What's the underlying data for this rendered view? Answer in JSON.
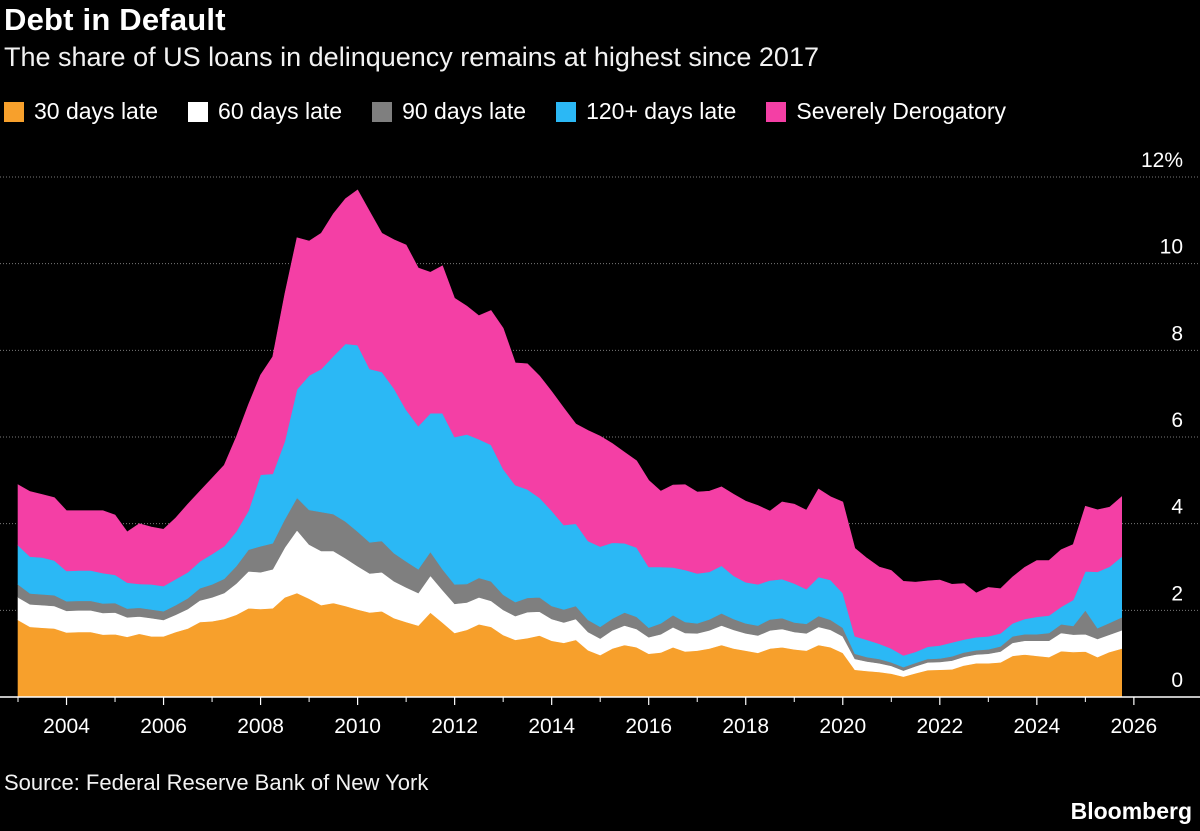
{
  "header": {
    "title": "Debt in Default",
    "subtitle": "The share of US loans in delinquency remains at highest since 2017"
  },
  "footer": {
    "source": "Source: Federal Reserve Bank of New York",
    "brand": "Bloomberg"
  },
  "chart_data": {
    "type": "area",
    "stacked": true,
    "title": "Debt in Default",
    "subtitle": "The share of US loans in delinquency remains at highest since 2017",
    "xlabel": "",
    "ylabel": "",
    "xlim": [
      2003.0,
      2026.25
    ],
    "ylim": [
      0,
      12
    ],
    "y_unit": "%",
    "yticks": [
      {
        "value": 0,
        "label": "0"
      },
      {
        "value": 2,
        "label": "2"
      },
      {
        "value": 4,
        "label": "4"
      },
      {
        "value": 6,
        "label": "6"
      },
      {
        "value": 8,
        "label": "8"
      },
      {
        "value": 10,
        "label": "10"
      },
      {
        "value": 12,
        "label": "12%"
      }
    ],
    "xticks": [
      {
        "value": 2004,
        "label": "2004"
      },
      {
        "value": 2006,
        "label": "2006"
      },
      {
        "value": 2008,
        "label": "2008"
      },
      {
        "value": 2010,
        "label": "2010"
      },
      {
        "value": 2012,
        "label": "2012"
      },
      {
        "value": 2014,
        "label": "2014"
      },
      {
        "value": 2016,
        "label": "2016"
      },
      {
        "value": 2018,
        "label": "2018"
      },
      {
        "value": 2020,
        "label": "2020"
      },
      {
        "value": 2022,
        "label": "2022"
      },
      {
        "value": 2024,
        "label": "2024"
      },
      {
        "value": 2026,
        "label": "2026"
      }
    ],
    "grid": "horizontal",
    "legend_position": "top",
    "x": [
      2003.0,
      2003.25,
      2003.5,
      2003.75,
      2004.0,
      2004.25,
      2004.5,
      2004.75,
      2005.0,
      2005.25,
      2005.5,
      2005.75,
      2006.0,
      2006.25,
      2006.5,
      2006.75,
      2007.0,
      2007.25,
      2007.5,
      2007.75,
      2008.0,
      2008.25,
      2008.5,
      2008.75,
      2009.0,
      2009.25,
      2009.5,
      2009.75,
      2010.0,
      2010.25,
      2010.5,
      2010.75,
      2011.0,
      2011.25,
      2011.5,
      2011.75,
      2012.0,
      2012.25,
      2012.5,
      2012.75,
      2013.0,
      2013.25,
      2013.5,
      2013.75,
      2014.0,
      2014.25,
      2014.5,
      2014.75,
      2015.0,
      2015.25,
      2015.5,
      2015.75,
      2016.0,
      2016.25,
      2016.5,
      2016.75,
      2017.0,
      2017.25,
      2017.5,
      2017.75,
      2018.0,
      2018.25,
      2018.5,
      2018.75,
      2019.0,
      2019.25,
      2019.5,
      2019.75,
      2020.0,
      2020.25,
      2020.5,
      2020.75,
      2021.0,
      2021.25,
      2021.5,
      2021.75,
      2022.0,
      2022.25,
      2022.5,
      2022.75,
      2023.0,
      2023.25,
      2023.5,
      2023.75,
      2024.0,
      2024.25,
      2024.5,
      2024.75,
      2025.0,
      2025.25,
      2025.5,
      2025.75
    ],
    "series": [
      {
        "name": "30 days late",
        "color": "#f7a02c",
        "values": [
          1.78,
          1.62,
          1.6,
          1.58,
          1.49,
          1.5,
          1.5,
          1.44,
          1.45,
          1.39,
          1.46,
          1.4,
          1.4,
          1.5,
          1.58,
          1.73,
          1.75,
          1.8,
          1.9,
          2.05,
          2.03,
          2.05,
          2.3,
          2.4,
          2.27,
          2.12,
          2.17,
          2.1,
          2.02,
          1.95,
          1.98,
          1.82,
          1.73,
          1.65,
          1.95,
          1.72,
          1.48,
          1.55,
          1.68,
          1.62,
          1.43,
          1.32,
          1.36,
          1.42,
          1.3,
          1.25,
          1.32,
          1.08,
          0.97,
          1.12,
          1.2,
          1.15,
          1.0,
          1.03,
          1.15,
          1.05,
          1.07,
          1.12,
          1.2,
          1.12,
          1.07,
          1.02,
          1.12,
          1.15,
          1.1,
          1.07,
          1.2,
          1.15,
          1.02,
          0.63,
          0.6,
          0.58,
          0.54,
          0.47,
          0.55,
          0.62,
          0.63,
          0.64,
          0.73,
          0.78,
          0.78,
          0.8,
          0.95,
          0.98,
          0.95,
          0.92,
          1.06,
          1.04,
          1.05,
          0.92,
          1.04,
          1.12
        ]
      },
      {
        "name": "60 days late",
        "color": "#ffffff",
        "values": [
          0.52,
          0.52,
          0.52,
          0.52,
          0.5,
          0.5,
          0.5,
          0.5,
          0.5,
          0.45,
          0.4,
          0.42,
          0.38,
          0.4,
          0.45,
          0.5,
          0.55,
          0.6,
          0.72,
          0.85,
          0.85,
          0.9,
          1.15,
          1.45,
          1.25,
          1.25,
          1.2,
          1.1,
          1.0,
          0.9,
          0.9,
          0.85,
          0.8,
          0.75,
          0.85,
          0.75,
          0.67,
          0.63,
          0.62,
          0.6,
          0.58,
          0.55,
          0.6,
          0.55,
          0.5,
          0.47,
          0.48,
          0.42,
          0.38,
          0.42,
          0.45,
          0.42,
          0.38,
          0.42,
          0.46,
          0.43,
          0.4,
          0.42,
          0.45,
          0.43,
          0.4,
          0.4,
          0.42,
          0.42,
          0.4,
          0.4,
          0.42,
          0.4,
          0.38,
          0.25,
          0.22,
          0.2,
          0.18,
          0.14,
          0.16,
          0.18,
          0.18,
          0.2,
          0.2,
          0.2,
          0.22,
          0.25,
          0.3,
          0.32,
          0.35,
          0.38,
          0.42,
          0.4,
          0.4,
          0.42,
          0.4,
          0.42
        ]
      },
      {
        "name": "90 days late",
        "color": "#7f7f7f",
        "values": [
          0.3,
          0.25,
          0.25,
          0.25,
          0.22,
          0.22,
          0.22,
          0.22,
          0.22,
          0.2,
          0.2,
          0.2,
          0.2,
          0.22,
          0.25,
          0.28,
          0.3,
          0.33,
          0.4,
          0.5,
          0.6,
          0.6,
          0.65,
          0.75,
          0.8,
          0.9,
          0.85,
          0.85,
          0.8,
          0.72,
          0.72,
          0.65,
          0.6,
          0.55,
          0.55,
          0.48,
          0.45,
          0.43,
          0.45,
          0.45,
          0.35,
          0.32,
          0.33,
          0.33,
          0.3,
          0.3,
          0.3,
          0.28,
          0.27,
          0.27,
          0.3,
          0.28,
          0.22,
          0.25,
          0.28,
          0.25,
          0.23,
          0.25,
          0.28,
          0.25,
          0.23,
          0.23,
          0.25,
          0.25,
          0.22,
          0.22,
          0.25,
          0.23,
          0.2,
          0.12,
          0.1,
          0.1,
          0.08,
          0.08,
          0.08,
          0.08,
          0.08,
          0.1,
          0.1,
          0.1,
          0.1,
          0.12,
          0.15,
          0.15,
          0.15,
          0.18,
          0.2,
          0.2,
          0.55,
          0.25,
          0.27,
          0.3
        ]
      },
      {
        "name": "120+ days late",
        "color": "#2bb8f5",
        "values": [
          0.9,
          0.85,
          0.85,
          0.8,
          0.7,
          0.7,
          0.7,
          0.7,
          0.65,
          0.6,
          0.55,
          0.58,
          0.58,
          0.6,
          0.6,
          0.62,
          0.7,
          0.75,
          0.8,
          0.9,
          1.65,
          1.6,
          1.8,
          2.5,
          3.1,
          3.3,
          3.65,
          4.1,
          4.3,
          4.0,
          3.9,
          3.8,
          3.5,
          3.3,
          3.2,
          3.6,
          3.4,
          3.45,
          3.2,
          3.15,
          2.9,
          2.7,
          2.5,
          2.3,
          2.2,
          1.95,
          1.9,
          1.82,
          1.85,
          1.75,
          1.6,
          1.6,
          1.4,
          1.3,
          1.1,
          1.2,
          1.15,
          1.1,
          1.1,
          1.0,
          0.95,
          0.95,
          0.9,
          0.9,
          0.9,
          0.8,
          0.9,
          0.92,
          0.8,
          0.4,
          0.4,
          0.35,
          0.32,
          0.27,
          0.25,
          0.28,
          0.3,
          0.32,
          0.3,
          0.3,
          0.3,
          0.3,
          0.3,
          0.35,
          0.4,
          0.4,
          0.4,
          0.6,
          0.9,
          1.3,
          1.3,
          1.4
        ]
      },
      {
        "name": "Severely Derogatory",
        "color": "#f43fa5",
        "values": [
          1.4,
          1.5,
          1.45,
          1.45,
          1.39,
          1.38,
          1.38,
          1.44,
          1.38,
          1.17,
          1.39,
          1.32,
          1.31,
          1.41,
          1.57,
          1.62,
          1.75,
          1.87,
          2.18,
          2.45,
          2.3,
          2.7,
          3.4,
          3.5,
          3.1,
          3.13,
          3.28,
          3.35,
          3.58,
          3.63,
          3.2,
          3.43,
          3.8,
          3.65,
          3.25,
          3.4,
          3.2,
          2.96,
          2.85,
          3.1,
          3.25,
          2.82,
          2.9,
          2.81,
          2.75,
          2.7,
          2.3,
          2.55,
          2.55,
          2.29,
          2.1,
          2.0,
          2.0,
          1.75,
          1.9,
          1.97,
          1.88,
          1.86,
          1.82,
          1.88,
          1.87,
          1.82,
          1.6,
          1.78,
          1.83,
          1.82,
          2.03,
          1.92,
          2.1,
          2.03,
          1.88,
          1.77,
          1.8,
          1.71,
          1.61,
          1.52,
          1.51,
          1.34,
          1.29,
          1.02,
          1.13,
          1.03,
          1.07,
          1.19,
          1.3,
          1.27,
          1.32,
          1.28,
          1.5,
          1.43,
          1.37,
          1.38
        ]
      }
    ]
  }
}
